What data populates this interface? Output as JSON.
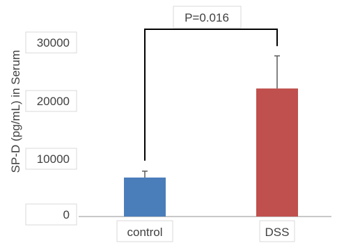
{
  "chart_data": {
    "type": "bar",
    "categories": [
      "control",
      "DSS"
    ],
    "values": [
      6700,
      22000
    ],
    "error_upper": [
      7800,
      27600
    ],
    "colors": [
      "#4a7ebb",
      "#c0504d"
    ],
    "yticks": [
      0,
      10000,
      20000,
      30000
    ],
    "ylim": [
      0,
      32000
    ],
    "ylabel": "SP-D (pg/mL) in Serum",
    "xlabel": "",
    "title": "",
    "annotation": "P=0.016",
    "grid": false,
    "legend": "none"
  }
}
